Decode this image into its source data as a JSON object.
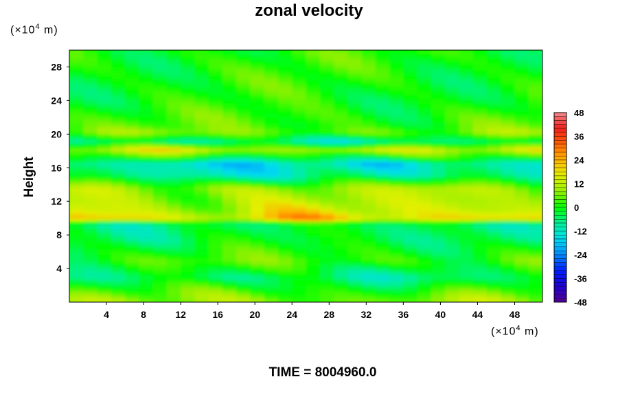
{
  "chart_data": {
    "type": "heatmap",
    "title": "zonal velocity",
    "ylabel": "Height",
    "xlabel": "",
    "y_unit": {
      "prefix": "(×10",
      "exp": "4",
      "suffix": " m)"
    },
    "x_unit": {
      "prefix": "(×10",
      "exp": "4",
      "suffix": " m)"
    },
    "xlim": [
      0,
      51
    ],
    "ylim": [
      0,
      30
    ],
    "x_ticks": [
      4,
      8,
      12,
      16,
      20,
      24,
      28,
      32,
      36,
      40,
      44,
      48
    ],
    "y_ticks": [
      4,
      8,
      12,
      16,
      20,
      24,
      28
    ],
    "colorbar": {
      "min": -48,
      "max": 48,
      "ticks": [
        48,
        36,
        24,
        12,
        0,
        -12,
        -24,
        -36,
        -48
      ]
    },
    "footer": "TIME = 8004960.0",
    "bands": [
      {
        "y": 28,
        "value": 1
      },
      {
        "y": 24,
        "value": 0
      },
      {
        "y": 21,
        "value": 4
      },
      {
        "y": 20.3,
        "value": 8
      },
      {
        "y": 19.2,
        "value": -10
      },
      {
        "y": 18.2,
        "value": 16
      },
      {
        "y": 16.5,
        "value": -18
      },
      {
        "y": 15.2,
        "value": -12
      },
      {
        "y": 13.6,
        "value": 12
      },
      {
        "y": 12.2,
        "value": 14
      },
      {
        "y": 11.0,
        "value": 18
      },
      {
        "y": 10.0,
        "value": 26
      },
      {
        "y": 9.4,
        "value": -6
      },
      {
        "y": 7.5,
        "value": -4
      },
      {
        "y": 5.0,
        "value": 4
      },
      {
        "y": 3.0,
        "value": -8
      },
      {
        "y": 1.0,
        "value": 6
      },
      {
        "y": 0.2,
        "value": 10
      }
    ]
  }
}
